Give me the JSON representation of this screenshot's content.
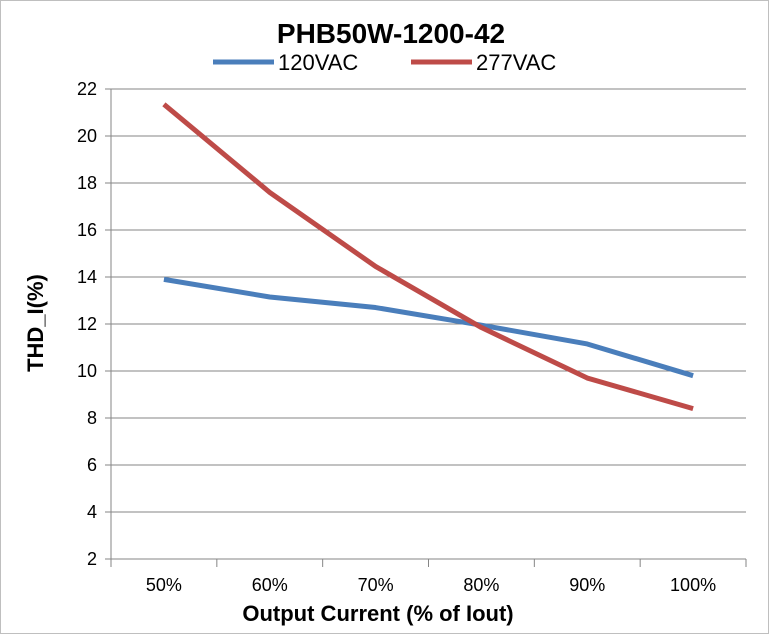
{
  "chart_data": {
    "type": "line",
    "title": "PHB50W-1200-42",
    "xlabel": "Output Current (% of Iout)",
    "ylabel": "THD_I(%)",
    "categories": [
      "50%",
      "60%",
      "70%",
      "80%",
      "90%",
      "100%"
    ],
    "ylim": [
      2,
      22
    ],
    "yticks": [
      "2",
      "4",
      "6",
      "8",
      "10",
      "12",
      "14",
      "16",
      "18",
      "20",
      "22"
    ],
    "grid": true,
    "legend": "top",
    "series": [
      {
        "name": "120VAC",
        "color": "#4a7ebb",
        "values": [
          13.9,
          13.15,
          12.7,
          11.95,
          11.15,
          9.8
        ]
      },
      {
        "name": "277VAC",
        "color": "#be4b48",
        "values": [
          21.35,
          17.6,
          14.45,
          11.85,
          9.7,
          8.4
        ]
      }
    ]
  }
}
